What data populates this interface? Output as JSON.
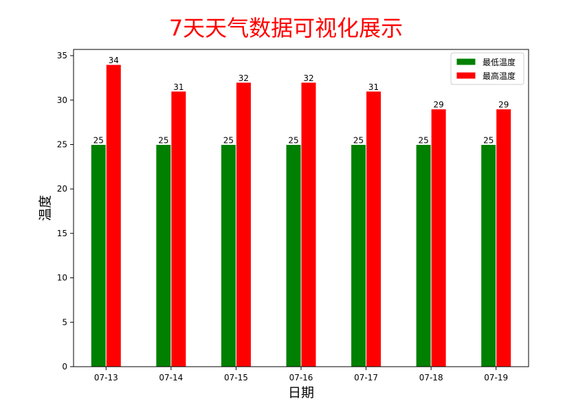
{
  "chart_data": {
    "type": "bar",
    "title": "7天天气数据可视化展示",
    "xlabel": "日期",
    "ylabel": "温度",
    "categories": [
      "07-13",
      "07-14",
      "07-15",
      "07-16",
      "07-17",
      "07-18",
      "07-19"
    ],
    "series": [
      {
        "name": "最低温度",
        "color": "#008000",
        "values": [
          25,
          25,
          25,
          25,
          25,
          25,
          25
        ]
      },
      {
        "name": "最高温度",
        "color": "#ff0000",
        "values": [
          34,
          31,
          32,
          32,
          31,
          29,
          29
        ]
      }
    ],
    "ylim": [
      0,
      35.7
    ],
    "yticks": [
      0,
      5,
      10,
      15,
      20,
      25,
      30,
      35
    ],
    "grid": false,
    "legend_position": "top-right",
    "title_color": "#ff0000"
  }
}
